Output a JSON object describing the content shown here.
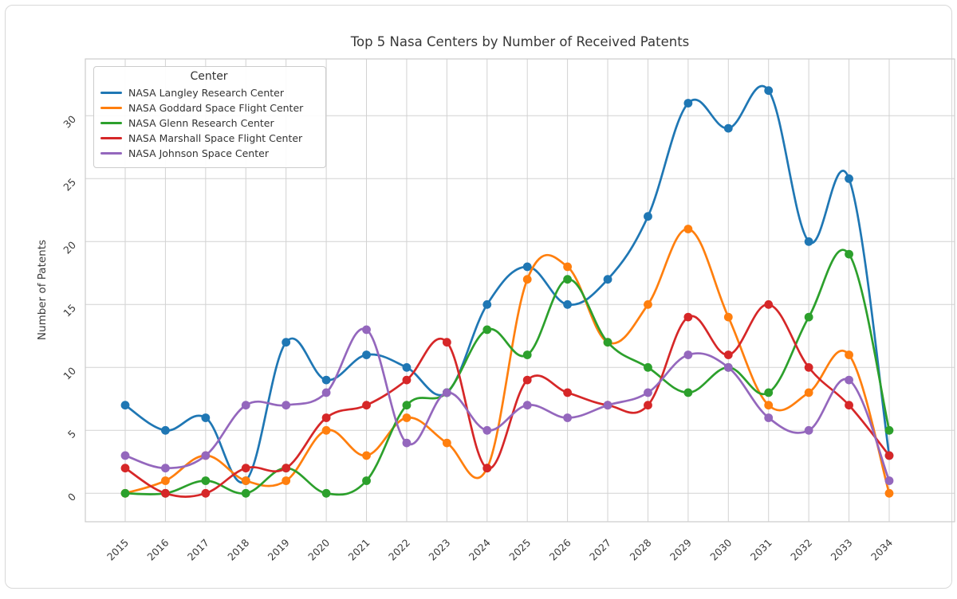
{
  "page": {
    "background": "#ffffff",
    "card_border_color": "#d8d8d8"
  },
  "chart_data": {
    "type": "line",
    "title": "Top 5 Nasa Centers by Number of Received Patents",
    "xlabel": "",
    "ylabel": "Number of Patents",
    "legend_title": "Center",
    "legend_position": "upper left",
    "grid": true,
    "smooth_splines": true,
    "markers": "circle",
    "x": [
      "2015",
      "2016",
      "2017",
      "2018",
      "2019",
      "2020",
      "2021",
      "2022",
      "2023",
      "2024",
      "2025",
      "2026",
      "2027",
      "2028",
      "2029",
      "2030",
      "2031",
      "2032",
      "2033",
      "2034"
    ],
    "yticks": [
      0,
      5,
      10,
      15,
      20,
      25,
      30
    ],
    "ylim": [
      -2.3,
      34.5
    ],
    "grid_color": "#d2d2d2",
    "spine_color": "#cccccc",
    "tick_label_color": "#3b3b3b",
    "series": [
      {
        "name": "NASA Langley Research Center",
        "color": "#1f77b4",
        "values": [
          7,
          5,
          6,
          1,
          12,
          9,
          11,
          10,
          8,
          15,
          18,
          15,
          17,
          22,
          31,
          29,
          32,
          20,
          25,
          3
        ]
      },
      {
        "name": "NASA Goddard Space Flight Center",
        "color": "#ff7f0e",
        "values": [
          0,
          1,
          3,
          1,
          1,
          5,
          3,
          6,
          4,
          2,
          17,
          18,
          12,
          15,
          21,
          14,
          7,
          8,
          11,
          0
        ]
      },
      {
        "name": "NASA Glenn Research Center",
        "color": "#2ca02c",
        "values": [
          0,
          0,
          1,
          0,
          2,
          0,
          1,
          7,
          8,
          13,
          11,
          17,
          12,
          10,
          8,
          10,
          8,
          14,
          19,
          5
        ]
      },
      {
        "name": "NASA Marshall Space Flight Center",
        "color": "#d62728",
        "values": [
          2,
          0,
          0,
          2,
          2,
          6,
          7,
          9,
          12,
          2,
          9,
          8,
          7,
          7,
          14,
          11,
          15,
          10,
          7,
          3
        ]
      },
      {
        "name": "NASA Johnson Space Center",
        "color": "#9467bd",
        "values": [
          3,
          2,
          3,
          7,
          7,
          8,
          13,
          4,
          8,
          5,
          7,
          6,
          7,
          8,
          11,
          10,
          6,
          5,
          9,
          1
        ]
      }
    ]
  }
}
